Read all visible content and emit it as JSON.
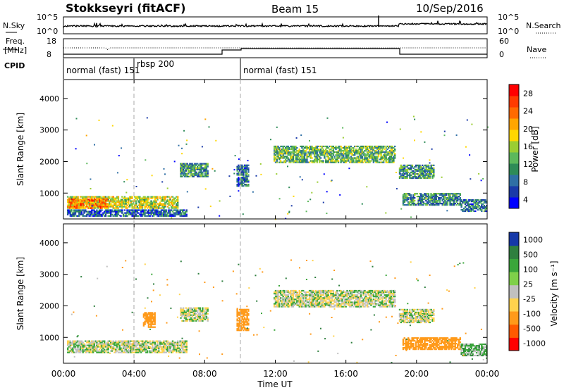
{
  "header": {
    "station": "Stokkseyri (fitACF)",
    "beam": "Beam 15",
    "date": "10/Sep/2016"
  },
  "noise_panel": {
    "left_label": "N.Sky",
    "left_ticks": [
      "10^5",
      "10^0"
    ],
    "right_ticks": [
      "10^5",
      "10^0"
    ],
    "right_label": "N.Search"
  },
  "freq_panel": {
    "left_label_line1": "Freq.",
    "left_label_line2": "[MHz]",
    "left_ticks": [
      "18",
      "8"
    ],
    "right_ticks": [
      "60",
      "0"
    ],
    "right_label": "Nave"
  },
  "cpid_panel": {
    "label": "CPID",
    "segments": [
      {
        "start": 0,
        "end": 4,
        "text": "normal (fast) 151"
      },
      {
        "start": 4,
        "end": 10,
        "text": "rbsp 200"
      },
      {
        "start": 10,
        "end": 24,
        "text": "normal (fast) 151"
      }
    ]
  },
  "time_axis": {
    "ticks": [
      "00:00",
      "04:00",
      "08:00",
      "12:00",
      "16:00",
      "20:00",
      "00:00"
    ],
    "label": "Time UT"
  },
  "power_colorbar": {
    "label": "Power [dB]",
    "ticks": [
      "28",
      "24",
      "20",
      "16",
      "12",
      "8",
      "4"
    ],
    "colors": [
      "#0000ff",
      "#1a3aa8",
      "#2f6fa5",
      "#2e8b57",
      "#5cb85c",
      "#9acd32",
      "#ffd700",
      "#ffa500",
      "#ff6a00",
      "#ff3b00",
      "#ff0000"
    ]
  },
  "velocity_colorbar": {
    "label": "Velocity [m s⁻¹]",
    "ticks": [
      "1000",
      "500",
      "100",
      "25",
      "-25",
      "-100",
      "-500",
      "-1000"
    ],
    "colors": [
      "#1538a8",
      "#2f7f3f",
      "#3aa63a",
      "#7fd04a",
      "#c0c0c0",
      "#ffd24d",
      "#ff9a1a",
      "#ff5a00",
      "#ff0000"
    ]
  },
  "chart_data": [
    {
      "type": "heatmap",
      "title": "Power",
      "xlabel": "Time UT",
      "ylabel": "Slant Range [km]",
      "xlim": [
        0,
        24
      ],
      "ylim": [
        180,
        4600
      ],
      "yticks": [
        1000,
        2000,
        3000,
        4000
      ],
      "colorbar": {
        "label": "Power [dB]",
        "range": [
          0,
          30
        ]
      },
      "regions": [
        {
          "t0": 0.2,
          "t1": 6.5,
          "r0": 500,
          "r1": 900,
          "mean": 16
        },
        {
          "t0": 0.3,
          "t1": 2.5,
          "r0": 500,
          "r1": 820,
          "mean": 22
        },
        {
          "t0": 0.2,
          "t1": 7.0,
          "r0": 250,
          "r1": 480,
          "mean": 6
        },
        {
          "t0": 6.6,
          "t1": 8.2,
          "r0": 1500,
          "r1": 1950,
          "mean": 10
        },
        {
          "t0": 9.8,
          "t1": 10.5,
          "r0": 1200,
          "r1": 1900,
          "mean": 8
        },
        {
          "t0": 11.9,
          "t1": 18.8,
          "r0": 1950,
          "r1": 2500,
          "mean": 12
        },
        {
          "t0": 19.0,
          "t1": 21.0,
          "r0": 1450,
          "r1": 1900,
          "mean": 10
        },
        {
          "t0": 19.2,
          "t1": 22.5,
          "r0": 600,
          "r1": 1000,
          "mean": 9
        },
        {
          "t0": 22.5,
          "t1": 24.0,
          "r0": 400,
          "r1": 800,
          "mean": 8
        }
      ]
    },
    {
      "type": "heatmap",
      "title": "Velocity",
      "xlabel": "Time UT",
      "ylabel": "Slant Range [km]",
      "xlim": [
        0,
        24
      ],
      "ylim": [
        180,
        4600
      ],
      "yticks": [
        1000,
        2000,
        3000,
        4000
      ],
      "colorbar": {
        "label": "Velocity [m s⁻¹]",
        "range": [
          -1000,
          1000
        ]
      },
      "regions": [
        {
          "t0": 0.2,
          "t1": 7.0,
          "r0": 500,
          "r1": 900,
          "mean": 0
        },
        {
          "t0": 6.6,
          "t1": 8.2,
          "r0": 1500,
          "r1": 1950,
          "mean": 0
        },
        {
          "t0": 4.5,
          "t1": 5.2,
          "r0": 1300,
          "r1": 1800,
          "mean": -200
        },
        {
          "t0": 9.8,
          "t1": 10.5,
          "r0": 1200,
          "r1": 1900,
          "mean": -400
        },
        {
          "t0": 11.9,
          "t1": 18.8,
          "r0": 1950,
          "r1": 2500,
          "mean": 0
        },
        {
          "t0": 19.0,
          "t1": 21.0,
          "r0": 1450,
          "r1": 1900,
          "mean": 0
        },
        {
          "t0": 19.2,
          "t1": 22.5,
          "r0": 600,
          "r1": 1000,
          "mean": -200
        },
        {
          "t0": 22.5,
          "t1": 24.0,
          "r0": 400,
          "r1": 800,
          "mean": 50
        }
      ]
    }
  ]
}
